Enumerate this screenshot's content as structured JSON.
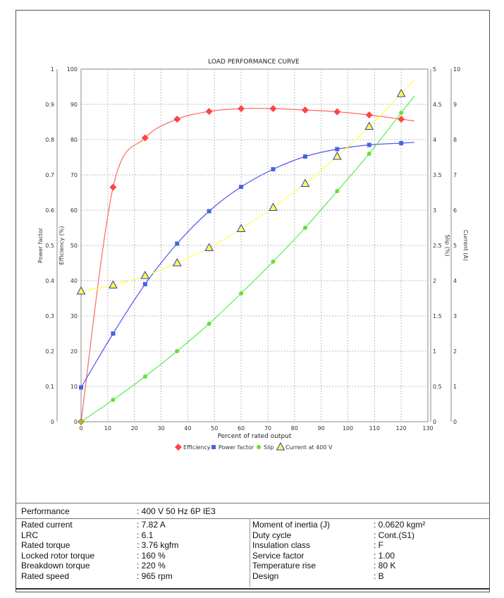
{
  "chart_data": {
    "type": "line",
    "title": "LOAD PERFORMANCE CURVE",
    "xlabel": "Percent of rated output",
    "xlim": [
      0,
      130
    ],
    "x_ticks": [
      0,
      10,
      20,
      30,
      40,
      50,
      60,
      70,
      80,
      90,
      100,
      110,
      120,
      130
    ],
    "grid": true,
    "legend_position": "bottom",
    "axes": {
      "power_factor": {
        "label": "Power factor",
        "side": "left-outer",
        "lim": [
          0,
          1
        ],
        "ticks": [
          "0",
          "0.1",
          "0.2",
          "0.3",
          "0.4",
          "0.5",
          "0.6",
          "0.7",
          "0.8",
          "0.9",
          "1"
        ]
      },
      "efficiency": {
        "label": "Efficiency (%)",
        "side": "left",
        "lim": [
          0,
          100
        ],
        "ticks": [
          "0",
          "10",
          "20",
          "30",
          "40",
          "50",
          "60",
          "70",
          "80",
          "90",
          "100"
        ]
      },
      "slip": {
        "label": "Slip (%)",
        "side": "right",
        "lim": [
          0,
          5
        ],
        "ticks": [
          "0",
          "0.5",
          "1",
          "1.5",
          "2",
          "2.5",
          "3",
          "3.5",
          "4",
          "4.5",
          "5"
        ]
      },
      "current": {
        "label": "Current (A)",
        "side": "right-outer",
        "lim": [
          0,
          10
        ],
        "ticks": [
          "0",
          "1",
          "2",
          "3",
          "4",
          "5",
          "6",
          "7",
          "8",
          "9",
          "10"
        ]
      }
    },
    "x": [
      0,
      12,
      24,
      36,
      48,
      60,
      72,
      84,
      96,
      108,
      120
    ],
    "series": [
      {
        "name": "Efficiency",
        "axis": "efficiency",
        "color": "#ff4444",
        "line_color": "#ff6666",
        "marker": "diamond",
        "values": [
          0,
          66.5,
          80.5,
          85.8,
          88,
          88.8,
          88.8,
          88.4,
          87.9,
          87,
          85.8
        ]
      },
      {
        "name": "Power factor",
        "axis": "power_factor",
        "color": "#4466dd",
        "line_color": "#5555ee",
        "marker": "square",
        "values": [
          0.097,
          0.25,
          0.39,
          0.505,
          0.597,
          0.666,
          0.716,
          0.752,
          0.773,
          0.785,
          0.79
        ]
      },
      {
        "name": "Slip",
        "axis": "slip",
        "color": "#66dd33",
        "line_color": "#55ee55",
        "marker": "circle",
        "values": [
          0,
          0.31,
          0.64,
          1.0,
          1.39,
          1.82,
          2.27,
          2.75,
          3.27,
          3.8,
          4.38
        ]
      },
      {
        "name": "Current at 400 V",
        "axis": "current",
        "color": "#ffff44",
        "line_color": "#ffff55",
        "marker": "triangle",
        "values": [
          3.7,
          3.87,
          4.14,
          4.5,
          4.93,
          5.47,
          6.07,
          6.75,
          7.52,
          8.37,
          9.3
        ]
      }
    ]
  },
  "table": {
    "performance": {
      "label": "Performance",
      "value": ": 400 V 50 Hz 6P IE3"
    },
    "left": [
      {
        "label": "Rated current",
        "value": ": 7.82 A"
      },
      {
        "label": "LRC",
        "value": ": 6.1"
      },
      {
        "label": "Rated torque",
        "value": ": 3.76 kgfm"
      },
      {
        "label": "Locked rotor torque",
        "value": ": 160 %"
      },
      {
        "label": "Breakdown torque",
        "value": ": 220 %"
      },
      {
        "label": "Rated speed",
        "value": ": 965 rpm"
      }
    ],
    "right": [
      {
        "label": "Moment of inertia (J)",
        "value": ": 0.0620 kgm²"
      },
      {
        "label": "Duty cycle",
        "value": ": Cont.(S1)"
      },
      {
        "label": "Insulation class",
        "value": ": F"
      },
      {
        "label": "Service factor",
        "value": ": 1.00"
      },
      {
        "label": "Temperature rise",
        "value": ": 80 K"
      },
      {
        "label": "Design",
        "value": ": B"
      }
    ]
  }
}
